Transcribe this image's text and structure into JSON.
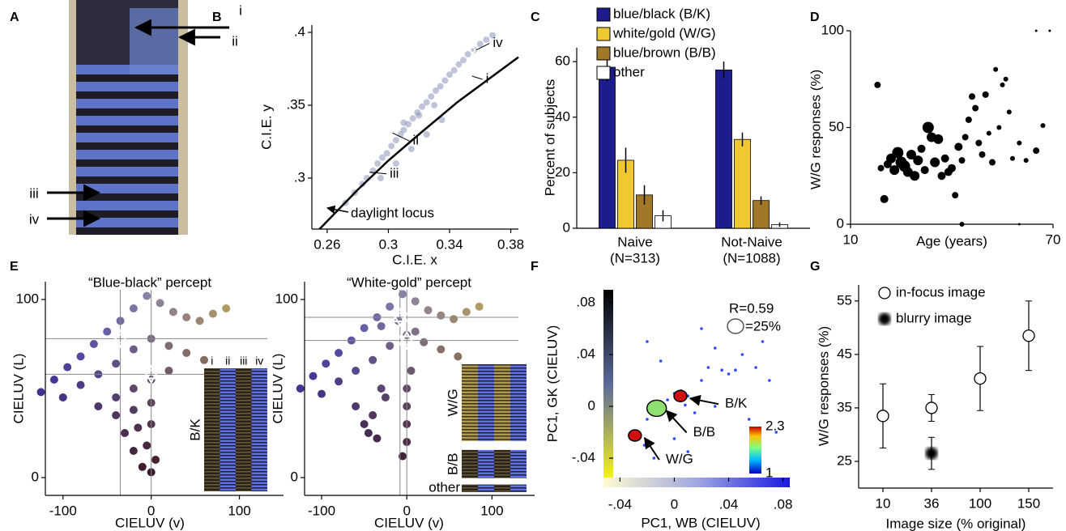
{
  "chart_data": [
    {
      "type": "photo",
      "panel": "A",
      "annotations": [
        "i",
        "ii",
        "iii",
        "iv"
      ]
    },
    {
      "type": "scatter",
      "panel": "B",
      "xlabel": "C.I.E. x",
      "ylabel": "C.I.E. y",
      "color": "#8a94b8",
      "xlim": [
        0.25,
        0.385
      ],
      "ylim": [
        0.265,
        0.405
      ],
      "xticks": [
        0.26,
        0.3,
        0.34,
        0.38
      ],
      "yticks": [
        {
          "value": 0.3,
          "label": ".3"
        },
        {
          "value": 0.35,
          "label": ".35"
        },
        {
          "value": 0.4,
          "label": ".4"
        }
      ],
      "x": [
        0.272,
        0.278,
        0.283,
        0.286,
        0.29,
        0.293,
        0.296,
        0.299,
        0.302,
        0.305,
        0.308,
        0.31,
        0.313,
        0.316,
        0.319,
        0.322,
        0.325,
        0.328,
        0.331,
        0.334,
        0.337,
        0.34,
        0.343,
        0.346,
        0.349,
        0.352,
        0.356,
        0.36,
        0.364,
        0.368,
        0.295,
        0.305,
        0.315,
        0.325,
        0.335,
        0.31,
        0.32,
        0.33
      ],
      "y": [
        0.283,
        0.29,
        0.296,
        0.3,
        0.305,
        0.31,
        0.314,
        0.317,
        0.322,
        0.326,
        0.33,
        0.333,
        0.337,
        0.341,
        0.345,
        0.349,
        0.352,
        0.356,
        0.36,
        0.363,
        0.367,
        0.371,
        0.374,
        0.378,
        0.381,
        0.385,
        0.388,
        0.392,
        0.395,
        0.398,
        0.3,
        0.31,
        0.32,
        0.33,
        0.34,
        0.338,
        0.343,
        0.35
      ],
      "locus": {
        "name": "daylight locus",
        "x": [
          0.255,
          0.28,
          0.3,
          0.32,
          0.345,
          0.385
        ],
        "y": [
          0.265,
          0.292,
          0.312,
          0.33,
          0.352,
          0.383
        ]
      },
      "points": {
        "names": [
          "i",
          "ii",
          "iii",
          "iv"
        ],
        "x": [
          0.352,
          0.3,
          0.285,
          0.355
        ],
        "y": [
          0.37,
          0.331,
          0.304,
          0.388
        ]
      }
    },
    {
      "type": "bar",
      "panel": "C",
      "ylabel": "Percent of subjects",
      "ylim": [
        0,
        65
      ],
      "yticks": [
        0,
        20,
        40,
        60
      ],
      "categories": [
        "Naive",
        "Not-Naive"
      ],
      "category_notes": [
        "(N=313)",
        "(N=1088)"
      ],
      "series": [
        {
          "name": "blue/black (B/K)",
          "color": "#1c1c8c",
          "values": [
            58,
            57
          ],
          "errors": [
            5,
            3
          ]
        },
        {
          "name": "white/gold (W/G)",
          "color": "#f0c832",
          "values": [
            24.5,
            32
          ],
          "errors": [
            4.5,
            2.5
          ]
        },
        {
          "name": "blue/brown (B/B)",
          "color": "#a07828",
          "values": [
            12,
            10
          ],
          "errors": [
            3.5,
            1.5
          ]
        },
        {
          "name": "other",
          "color": "#ffffff",
          "values": [
            4.5,
            1.3
          ],
          "errors": [
            2,
            0.8
          ]
        }
      ]
    },
    {
      "type": "bubble",
      "panel": "D",
      "xlabel": "Age (years)",
      "ylabel": "W/G responses (%)",
      "color": "#000000",
      "xlim": [
        10,
        70
      ],
      "ylim": [
        0,
        100
      ],
      "xticks": [
        10,
        70
      ],
      "yticks": [
        0,
        50,
        100
      ],
      "x": [
        18,
        19,
        20,
        21,
        22,
        23,
        24,
        25,
        26,
        27,
        28,
        29,
        30,
        31,
        32,
        33,
        34,
        35,
        36,
        37,
        38,
        39,
        40,
        41,
        42,
        43,
        44,
        45,
        46,
        47,
        48,
        49,
        50,
        51,
        52,
        53,
        54,
        55,
        56,
        57,
        58,
        60,
        62,
        65,
        67,
        65,
        69,
        43,
        60
      ],
      "y": [
        72,
        29,
        13,
        31,
        34,
        28,
        37,
        32,
        30,
        27,
        36,
        25,
        33,
        39,
        28,
        50,
        45,
        32,
        44,
        25,
        34,
        27,
        29,
        15,
        40,
        33,
        45,
        54,
        66,
        60,
        42,
        36,
        67,
        47,
        32,
        80,
        50,
        72,
        75,
        58,
        34,
        42,
        33,
        38,
        51,
        100,
        100,
        0,
        0
      ],
      "sizes": [
        4,
        4,
        5,
        5,
        6,
        6,
        7,
        7,
        7,
        6,
        6,
        6,
        6,
        5,
        5,
        7,
        6,
        6,
        6,
        5,
        5,
        5,
        5,
        4,
        5,
        4,
        4,
        4,
        4,
        4,
        4,
        4,
        4,
        3,
        4,
        3,
        3,
        3,
        3,
        3,
        3,
        3,
        3,
        4,
        3,
        1.5,
        1.5,
        3,
        1.5
      ]
    },
    {
      "type": "scatter",
      "panel": "E",
      "title": "“Blue-black” percept",
      "xlabel": "CIELUV (v)",
      "ylabel": "CIELUV (L)",
      "xlim": [
        -120,
        150
      ],
      "ylim": [
        -10,
        110
      ],
      "xticks": [
        -100,
        0,
        100
      ],
      "yticks": [
        0,
        100
      ],
      "x": [
        -125,
        -110,
        -95,
        -80,
        -65,
        -50,
        -35,
        -20,
        -5,
        10,
        25,
        40,
        55,
        70,
        85,
        -100,
        -80,
        -60,
        -40,
        -20,
        0,
        20,
        40,
        60,
        -60,
        -40,
        -20,
        0,
        20,
        -40,
        -20,
        0,
        -30,
        -15,
        0,
        -20,
        -5,
        5,
        -10,
        0
      ],
      "y": [
        48,
        55,
        62,
        68,
        75,
        82,
        88,
        95,
        102,
        98,
        93,
        90,
        88,
        92,
        95,
        45,
        52,
        58,
        64,
        72,
        78,
        74,
        70,
        66,
        40,
        45,
        50,
        55,
        60,
        35,
        38,
        42,
        25,
        28,
        30,
        15,
        18,
        10,
        6,
        3
      ],
      "stars": {
        "x": [
          -35,
          0
        ],
        "y": [
          78,
          58
        ]
      },
      "inset": {
        "columns": [
          "i",
          "ii",
          "iii",
          "iv"
        ],
        "groups": [
          "B/K"
        ]
      }
    },
    {
      "type": "scatter",
      "title": "“White-gold” percept",
      "xlabel": "CIELUV (v)",
      "ylabel": "CIELUV (L)",
      "xlim": [
        -120,
        150
      ],
      "ylim": [
        -10,
        110
      ],
      "xticks": [
        -100,
        0,
        100
      ],
      "yticks": [
        0,
        100
      ],
      "x": [
        -125,
        -110,
        -95,
        -80,
        -65,
        -50,
        -35,
        -20,
        -5,
        10,
        25,
        40,
        55,
        70,
        85,
        -100,
        -80,
        -60,
        -40,
        -20,
        0,
        20,
        40,
        60,
        -30,
        -10,
        10,
        -60,
        -50,
        -45,
        -35,
        -40,
        0,
        0,
        0,
        0,
        -5,
        -30,
        -25,
        5
      ],
      "y": [
        50,
        57,
        64,
        70,
        77,
        84,
        90,
        96,
        103,
        99,
        94,
        91,
        89,
        93,
        96,
        47,
        54,
        60,
        66,
        74,
        80,
        76,
        72,
        68,
        85,
        88,
        82,
        40,
        30,
        25,
        22,
        35,
        50,
        40,
        30,
        20,
        12,
        50,
        45,
        60
      ],
      "stars": {
        "x": [
          -8,
          0
        ],
        "y": [
          90,
          77
        ]
      },
      "inset": {
        "groups": [
          "W/G",
          "B/B",
          "other"
        ]
      }
    },
    {
      "type": "density",
      "panel": "F",
      "xlabel": "PC1, WB (CIELUV)",
      "ylabel": "PC1, GK (CIELUV)",
      "color": "#2a4cff",
      "xlim": [
        -0.045,
        0.085
      ],
      "ylim": [
        -0.055,
        0.09
      ],
      "xticks": [
        {
          "value": -0.04,
          "label": "-.04"
        },
        0,
        {
          "value": 0.04,
          "label": ".04"
        },
        {
          "value": 0.08,
          "label": ".08"
        }
      ],
      "yticks": [
        {
          "value": -0.04,
          "label": "-.04"
        },
        0,
        {
          "value": 0.04,
          "label": ".04"
        },
        {
          "value": 0.08,
          "label": ".08"
        }
      ],
      "x": [
        -0.025,
        -0.022,
        -0.02,
        -0.015,
        -0.01,
        -0.005,
        0,
        0.005,
        0.01,
        0.015,
        0.02,
        0.025,
        0.03,
        0.04,
        0.05,
        0.06,
        0.07,
        0.075,
        -0.02,
        -0.01,
        0.0,
        0.01,
        0.02,
        0.03,
        0.045,
        0.055,
        0.065,
        0.035,
        0.008,
        -0.008
      ],
      "y": [
        -0.022,
        -0.03,
        -0.01,
        -0.04,
        0.0,
        0.005,
        0.01,
        0.012,
        0.008,
        -0.005,
        0.02,
        0.03,
        0.0,
        0.025,
        0.04,
        0.03,
        0.02,
        -0.02,
        0.05,
        0.035,
        -0.025,
        -0.035,
        0.06,
        0.045,
        0.028,
        -0.01,
        0.05,
        0.028,
        0.001,
        -0.002
      ],
      "clusters": [
        {
          "name": "B/K",
          "x": 0.0045,
          "y": 0.008
        },
        {
          "name": "B/B",
          "x": -0.013,
          "y": -0.0015
        },
        {
          "name": "W/G",
          "x": -0.029,
          "y": -0.0225
        }
      ],
      "annotations": [
        "R=0.59",
        "=25%"
      ],
      "clim": [
        1,
        2.3
      ],
      "cticks": [
        2.3,
        1
      ]
    },
    {
      "type": "errorbar",
      "panel": "G",
      "xlabel": "Image size (% original)",
      "ylabel": "W/G responses (%)",
      "categories": [
        "10",
        "36",
        "100",
        "150"
      ],
      "ylim": [
        20,
        58
      ],
      "yticks": [
        25,
        35,
        45,
        55
      ],
      "series": [
        {
          "name": "in-focus image",
          "color": "#ffffff",
          "values": [
            33.5,
            35,
            40.5,
            48.5
          ],
          "errors": [
            6,
            2.5,
            6,
            6.5
          ]
        },
        {
          "name": "blurry image",
          "color": "#000000",
          "values": [
            null,
            26.5,
            null,
            null
          ],
          "errors": [
            null,
            3,
            null,
            null
          ]
        }
      ]
    }
  ]
}
